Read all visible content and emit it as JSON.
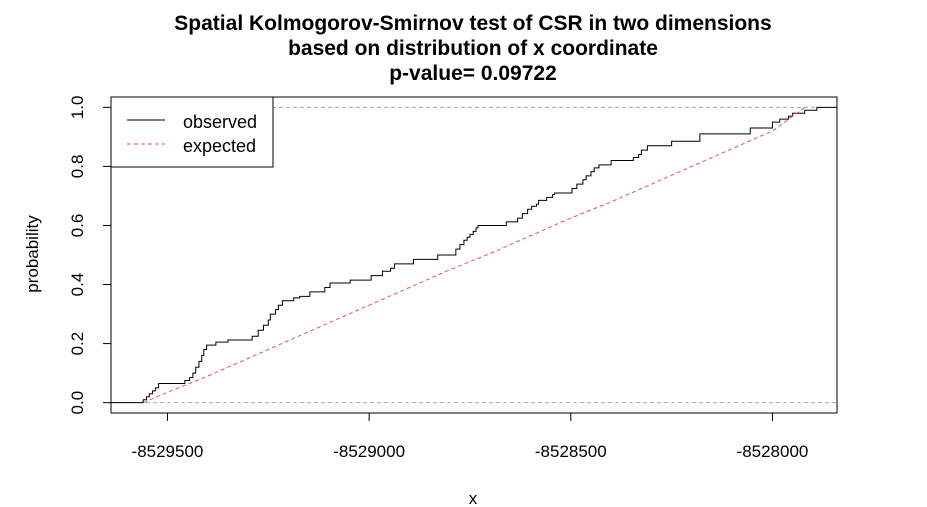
{
  "chart_data": {
    "type": "line",
    "title_lines": [
      "Spatial Kolmogorov-Smirnov test of CSR in two dimensions",
      "based on distribution of x coordinate",
      "p-value= 0.09722"
    ],
    "xlabel": "x",
    "ylabel": "probability",
    "xlim": [
      -8529640,
      -8527840
    ],
    "ylim": [
      -0.035,
      1.035
    ],
    "x_ticks": [
      -8529500,
      -8529000,
      -8528500,
      -8528000
    ],
    "x_tick_labels": [
      "-8529500",
      "-8529000",
      "-8528500",
      "-8528000"
    ],
    "y_ticks": [
      0.0,
      0.2,
      0.4,
      0.6,
      0.8,
      1.0
    ],
    "y_tick_labels": [
      "0.0",
      "0.2",
      "0.4",
      "0.6",
      "0.8",
      "1.0"
    ],
    "reference_lines": [
      0,
      1
    ],
    "legend": {
      "position": "top-left",
      "entries": [
        "observed",
        "expected"
      ]
    },
    "series": [
      {
        "name": "observed",
        "style": "step",
        "color": "#000000",
        "x": [
          -8529640,
          -8529560,
          -8529552,
          -8529545,
          -8529537,
          -8529530,
          -8529522,
          -8529500,
          -8529457,
          -8529445,
          -8529437,
          -8529430,
          -8529422,
          -8529415,
          -8529410,
          -8529403,
          -8529380,
          -8529350,
          -8529290,
          -8529275,
          -8529262,
          -8529250,
          -8529245,
          -8529232,
          -8529225,
          -8529215,
          -8529187,
          -8529172,
          -8529147,
          -8529110,
          -8529097,
          -8529047,
          -8528995,
          -8528967,
          -8528947,
          -8528937,
          -8528890,
          -8528830,
          -8528785,
          -8528775,
          -8528765,
          -8528757,
          -8528750,
          -8528742,
          -8528735,
          -8528730,
          -8528710,
          -8528660,
          -8528632,
          -8528620,
          -8528607,
          -8528597,
          -8528585,
          -8528580,
          -8528560,
          -8528545,
          -8528540,
          -8528497,
          -8528485,
          -8528470,
          -8528462,
          -8528450,
          -8528442,
          -8528430,
          -8528400,
          -8528345,
          -8528332,
          -8528325,
          -8528310,
          -8528250,
          -8528180,
          -8528055,
          -8528000,
          -8527982,
          -8527960,
          -8527950,
          -8527920,
          -8527890,
          -8527840
        ],
        "y": [
          0.0,
          0.01,
          0.02,
          0.03,
          0.04,
          0.05,
          0.065,
          0.065,
          0.075,
          0.085,
          0.1,
          0.12,
          0.14,
          0.16,
          0.18,
          0.195,
          0.205,
          0.212,
          0.225,
          0.245,
          0.262,
          0.28,
          0.3,
          0.315,
          0.33,
          0.345,
          0.355,
          0.36,
          0.375,
          0.39,
          0.405,
          0.415,
          0.43,
          0.445,
          0.455,
          0.47,
          0.485,
          0.5,
          0.52,
          0.535,
          0.55,
          0.56,
          0.57,
          0.58,
          0.592,
          0.6,
          0.6,
          0.612,
          0.625,
          0.64,
          0.655,
          0.665,
          0.672,
          0.685,
          0.695,
          0.705,
          0.71,
          0.725,
          0.74,
          0.755,
          0.768,
          0.782,
          0.795,
          0.805,
          0.82,
          0.83,
          0.84,
          0.855,
          0.87,
          0.885,
          0.91,
          0.93,
          0.95,
          0.96,
          0.97,
          0.98,
          0.99,
          1.0,
          1.0
        ]
      },
      {
        "name": "expected",
        "style": "dashed",
        "color": "#DF536B",
        "x": [
          -8529560,
          -8529500,
          -8529400,
          -8529300,
          -8529200,
          -8529100,
          -8529000,
          -8528900,
          -8528800,
          -8528700,
          -8528600,
          -8528500,
          -8528400,
          -8528300,
          -8528200,
          -8528100,
          -8528000,
          -8527920
        ],
        "y": [
          0.0,
          0.035,
          0.09,
          0.15,
          0.21,
          0.27,
          0.33,
          0.39,
          0.45,
          0.505,
          0.565,
          0.625,
          0.68,
          0.74,
          0.8,
          0.86,
          0.92,
          1.0
        ]
      }
    ]
  }
}
